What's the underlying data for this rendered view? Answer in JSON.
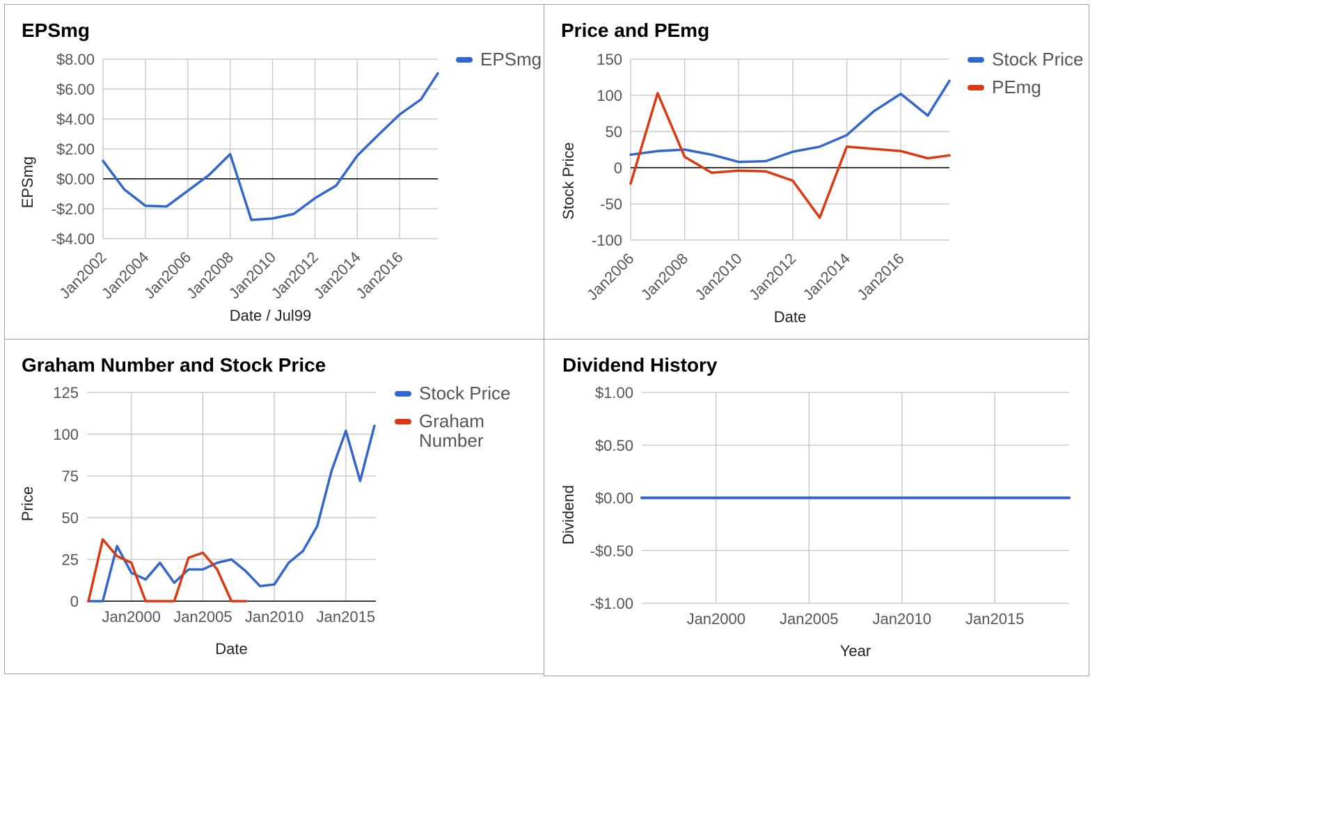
{
  "colors": {
    "blue": "#3366cc",
    "red": "#dc3912",
    "grid": "#cccccc",
    "zero": "#000000"
  },
  "chart_data": [
    {
      "id": "eps",
      "type": "line",
      "title": "EPSmg",
      "xlabel": "Date / Jul99",
      "ylabel": "EPSmg",
      "x": [
        2002,
        2003,
        2004,
        2005,
        2006,
        2007,
        2008,
        2009,
        2010,
        2011,
        2012,
        2013,
        2014,
        2015,
        2016,
        2017,
        2017.8
      ],
      "series": [
        {
          "name": "EPSmg",
          "color": "#3366cc",
          "values": [
            1.2,
            -0.7,
            -1.8,
            -1.85,
            -0.8,
            0.25,
            1.65,
            -2.75,
            -2.65,
            -2.35,
            -1.3,
            -0.45,
            1.55,
            2.95,
            4.3,
            5.3,
            7.05
          ]
        }
      ],
      "xlim": [
        2002,
        2017.8
      ],
      "xticks": [
        2002,
        2004,
        2006,
        2008,
        2010,
        2012,
        2014,
        2016
      ],
      "xtick_labels": [
        "Jan2002",
        "Jan2004",
        "Jan2006",
        "Jan2008",
        "Jan2010",
        "Jan2012",
        "Jan2014",
        "Jan2016"
      ],
      "ylim": [
        -4,
        8
      ],
      "yticks": [
        8,
        6,
        4,
        2,
        0,
        -2,
        -4
      ],
      "ytick_labels": [
        "$8.00",
        "$6.00",
        "$4.00",
        "$2.00",
        "$0.00",
        "-$2.00",
        "-$4.00"
      ],
      "legend": "right"
    },
    {
      "id": "price",
      "type": "line",
      "title": "Price and PEmg",
      "xlabel": "Date",
      "ylabel": "Stock Price",
      "x": [
        2006,
        2007,
        2008,
        2009,
        2010,
        2011,
        2012,
        2013,
        2014,
        2015,
        2016,
        2017,
        2017.8
      ],
      "series": [
        {
          "name": "Stock Price",
          "color": "#3366cc",
          "values": [
            18,
            23,
            25,
            18,
            8,
            9,
            22,
            29,
            45,
            78,
            102,
            72,
            120
          ]
        },
        {
          "name": "PEmg",
          "color": "#dc3912",
          "values": [
            -22,
            103,
            15,
            -7,
            -4,
            -5,
            -18,
            -69,
            29,
            26,
            23,
            13,
            17
          ]
        }
      ],
      "xlim": [
        2006,
        2017.8
      ],
      "xticks": [
        2006,
        2008,
        2010,
        2012,
        2014,
        2016
      ],
      "xtick_labels": [
        "Jan2006",
        "Jan2008",
        "Jan2010",
        "Jan2012",
        "Jan2014",
        "Jan2016"
      ],
      "ylim": [
        -100,
        150
      ],
      "yticks": [
        150,
        100,
        50,
        0,
        -50,
        -100
      ],
      "ytick_labels": [
        "150",
        "100",
        "50",
        "0",
        "-50",
        "-100"
      ],
      "legend": "right"
    },
    {
      "id": "graham",
      "type": "line",
      "title": "Graham Number and Stock Price",
      "xlabel": "Date",
      "ylabel": "Price",
      "series": [
        {
          "name": "Stock Price",
          "color": "#3366cc",
          "x": [
            1997,
            1998,
            1999,
            2000,
            2001,
            2002,
            2003,
            2004,
            2005,
            2006,
            2007,
            2008,
            2009,
            2010,
            2011,
            2012,
            2013,
            2014,
            2015,
            2016,
            2017
          ],
          "values": [
            0,
            0,
            33,
            17,
            13,
            23,
            11,
            19,
            19,
            23,
            25,
            18,
            9,
            10,
            23,
            30,
            45,
            78,
            102,
            72,
            105
          ]
        },
        {
          "name": "Graham Number",
          "color": "#dc3912",
          "x": [
            1997,
            1998,
            1999,
            2000,
            2001,
            2002,
            2003,
            2004,
            2005,
            2006,
            2007,
            2008
          ],
          "values": [
            0,
            37,
            27,
            23,
            0,
            0,
            0,
            26,
            29,
            19,
            0,
            0
          ]
        }
      ],
      "xlim": [
        1996.9,
        2017.1
      ],
      "xticks": [
        2000,
        2005,
        2010,
        2015
      ],
      "xtick_labels": [
        "Jan2000",
        "Jan2005",
        "Jan2010",
        "Jan2015"
      ],
      "ylim": [
        0,
        125
      ],
      "yticks": [
        125,
        100,
        75,
        50,
        25,
        0
      ],
      "ytick_labels": [
        "125",
        "100",
        "75",
        "50",
        "25",
        "0"
      ],
      "legend": "right"
    },
    {
      "id": "dividend",
      "type": "line",
      "title": "Dividend History",
      "xlabel": "Year",
      "ylabel": "Dividend",
      "x": [
        1996,
        2000,
        2005,
        2010,
        2015,
        2019
      ],
      "series": [
        {
          "name": "",
          "color": "#3366cc",
          "values": [
            0,
            0,
            0,
            0,
            0,
            0
          ]
        }
      ],
      "xlim": [
        1996,
        2019
      ],
      "xticks": [
        2000,
        2005,
        2010,
        2015
      ],
      "xtick_labels": [
        "Jan2000",
        "Jan2005",
        "Jan2010",
        "Jan2015"
      ],
      "ylim": [
        -1,
        1
      ],
      "yticks": [
        1,
        0.5,
        0,
        -0.5,
        -1
      ],
      "ytick_labels": [
        "$1.00",
        "$0.50",
        "$0.00",
        "-$0.50",
        "-$1.00"
      ],
      "legend": "none"
    }
  ]
}
